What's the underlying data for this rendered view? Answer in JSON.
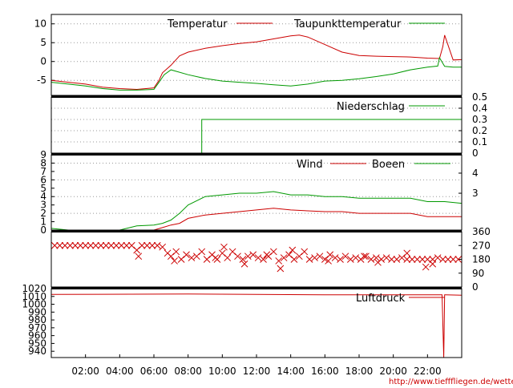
{
  "chart_data": [
    {
      "type": "line",
      "legend_position": "top-right",
      "grid": true,
      "yticks_left": [
        "10",
        "5",
        "0",
        "-5"
      ],
      "ylim": [
        -9,
        12.5
      ],
      "series": [
        {
          "name": "Temperatur",
          "color": "#cc0000",
          "x": [
            0,
            1,
            2,
            3,
            4,
            5,
            6,
            6.3,
            6.5,
            7,
            7.5,
            8,
            9,
            10,
            11,
            12,
            13,
            14,
            14.5,
            15,
            16,
            17,
            18,
            19,
            20,
            21,
            22,
            22.7,
            22.9,
            23,
            23.5,
            24
          ],
          "y": [
            -5,
            -5.5,
            -6,
            -6.8,
            -7.2,
            -7.4,
            -7,
            -5,
            -3,
            -1,
            1.5,
            2.5,
            3.5,
            4.2,
            4.8,
            5.2,
            6,
            6.8,
            7,
            6.5,
            4.5,
            2.5,
            1.6,
            1.4,
            1.3,
            1.2,
            0.9,
            0.8,
            4,
            7,
            0.4,
            0.5
          ]
        },
        {
          "name": "Taupunkttemperatur",
          "color": "#009900",
          "x": [
            0,
            1,
            2,
            3,
            4,
            5,
            6,
            6.3,
            6.6,
            7,
            8,
            9,
            10,
            11,
            12,
            13,
            14,
            15,
            16,
            17,
            18,
            19,
            20,
            21,
            22,
            22.6,
            22.7,
            23,
            23.5,
            24
          ],
          "y": [
            -5.5,
            -6,
            -6.5,
            -7.2,
            -7.6,
            -7.6,
            -7.4,
            -5.5,
            -3.5,
            -2.2,
            -3.5,
            -4.5,
            -5.2,
            -5.5,
            -5.8,
            -6.2,
            -6.5,
            -6,
            -5.2,
            -5,
            -4.6,
            -4,
            -3.3,
            -2.2,
            -1.5,
            -1.2,
            1,
            -1.3,
            -1.5,
            -1.5
          ]
        }
      ]
    },
    {
      "type": "line",
      "legend_position": "top-right",
      "grid": true,
      "yticks_right": [
        "0.5",
        "0.4",
        "0.3",
        "0.2",
        "0.1",
        "0"
      ],
      "ylim": [
        0,
        0.5
      ],
      "series": [
        {
          "name": "Niederschlag",
          "color": "#009900",
          "x": [
            0,
            8.8,
            8.8,
            22.6,
            22.6,
            24
          ],
          "y": [
            0,
            0,
            0.3,
            0.3,
            0.3,
            0.3
          ]
        }
      ]
    },
    {
      "type": "line",
      "legend_position": "top-right",
      "grid": true,
      "yticks_left": [
        "9",
        "8",
        "7",
        "6",
        "5",
        "4",
        "3",
        "2",
        "1",
        "0"
      ],
      "yticks_right": [
        "4",
        "3"
      ],
      "ylim": [
        0,
        9
      ],
      "series": [
        {
          "name": "Wind",
          "color": "#cc0000",
          "x": [
            0,
            1,
            2,
            3,
            4,
            5,
            6,
            6.5,
            7,
            7.5,
            8,
            9,
            10,
            11,
            12,
            13,
            14,
            15,
            16,
            17,
            18,
            19,
            20,
            21,
            22,
            23,
            24
          ],
          "y": [
            0,
            0,
            0,
            0,
            0,
            0,
            0,
            0.3,
            0.6,
            0.8,
            1.4,
            1.8,
            2,
            2.2,
            2.4,
            2.6,
            2.4,
            2.3,
            2.2,
            2.2,
            2,
            2,
            2,
            2,
            1.6,
            1.6,
            1.6
          ]
        },
        {
          "name": "Boeen",
          "color": "#009900",
          "x": [
            0,
            1,
            2,
            3,
            4,
            5,
            6,
            6.5,
            7,
            7.5,
            8,
            9,
            10,
            11,
            12,
            13,
            14,
            15,
            16,
            17,
            18,
            19,
            20,
            21,
            22,
            23,
            24
          ],
          "y": [
            0.2,
            0,
            0,
            0,
            0,
            0.5,
            0.6,
            0.8,
            1.2,
            2,
            3,
            4,
            4.2,
            4.4,
            4.4,
            4.6,
            4.2,
            4.2,
            4,
            4,
            3.8,
            3.8,
            3.8,
            3.8,
            3.4,
            3.4,
            3.2
          ]
        }
      ]
    },
    {
      "type": "scatter",
      "grid": false,
      "yticks_right": [
        "360",
        "270",
        "180",
        "90",
        "0"
      ],
      "ylim": [
        0,
        360
      ],
      "series": [
        {
          "color": "#cc0000",
          "x": [
            0.2,
            0.5,
            0.8,
            1.1,
            1.4,
            1.7,
            2,
            2.3,
            2.6,
            2.9,
            3.2,
            3.5,
            3.8,
            4.1,
            4.4,
            4.7,
            5,
            5.3,
            5.6,
            5.9,
            6.2,
            6.5,
            6.8,
            7,
            7.3,
            7.6,
            7.9,
            8.2,
            8.5,
            8.8,
            9.1,
            9.4,
            9.7,
            10,
            10.3,
            10.6,
            10.9,
            11.2,
            11.5,
            11.8,
            12.1,
            12.4,
            12.7,
            13,
            13.3,
            13.6,
            13.9,
            14.2,
            14.5,
            14.8,
            15.1,
            15.4,
            15.7,
            16,
            16.3,
            16.6,
            16.9,
            17.2,
            17.5,
            17.8,
            18.1,
            18.4,
            18.7,
            19,
            19.3,
            19.6,
            19.9,
            20.2,
            20.5,
            20.8,
            21.1,
            21.4,
            21.7,
            22,
            22.3,
            22.6,
            22.9,
            23.2,
            23.5,
            23.8
          ],
          "y": [
            270,
            270,
            270,
            270,
            270,
            270,
            270,
            270,
            270,
            270,
            270,
            270,
            270,
            270,
            270,
            270,
            240,
            270,
            270,
            270,
            270,
            260,
            220,
            200,
            230,
            180,
            210,
            190,
            200,
            230,
            180,
            210,
            180,
            220,
            190,
            230,
            200,
            180,
            200,
            210,
            190,
            180,
            200,
            230,
            170,
            190,
            210,
            180,
            200,
            230,
            180,
            190,
            200,
            180,
            210,
            190,
            180,
            200,
            180,
            190,
            180,
            200,
            180,
            190,
            180,
            190,
            180,
            180,
            190,
            180,
            180,
            180,
            180,
            180,
            180,
            190,
            180,
            180,
            180,
            180
          ]
        },
        {
          "color": "#cc0000",
          "x": [
            5.1,
            7.2,
            9.6,
            10.1,
            11.3,
            12.6,
            13.4,
            14.1,
            16.2,
            18.3,
            19.1,
            20.8,
            21.9,
            22.3
          ],
          "y": [
            200,
            170,
            190,
            260,
            150,
            210,
            120,
            240,
            170,
            200,
            160,
            220,
            130,
            150
          ]
        }
      ]
    },
    {
      "type": "line",
      "legend_position": "top-right",
      "grid": false,
      "yticks_left": [
        "1020",
        "1010",
        "1000",
        "990",
        "980",
        "970",
        "960",
        "950",
        "940"
      ],
      "ylim": [
        932,
        1020
      ],
      "series": [
        {
          "name": "Luftdruck",
          "color": "#cc0000",
          "x": [
            0,
            8,
            12,
            16,
            20,
            22.6,
            22.75,
            22.85,
            22.95,
            23,
            23.05,
            24
          ],
          "y": [
            1012.5,
            1013,
            1012.5,
            1012,
            1012,
            1012,
            1012,
            1012,
            932,
            1012,
            1012,
            1011.5
          ]
        }
      ]
    }
  ],
  "xaxis": {
    "ticks": [
      "02:00",
      "04:00",
      "06:00",
      "08:00",
      "10:00",
      "12:00",
      "14:00",
      "16:00",
      "18:00",
      "20:00",
      "22:00"
    ],
    "xlim": [
      0,
      24
    ]
  },
  "footer": {
    "url": "http://www.tiefffliegen.de/wetter/"
  },
  "colors": {
    "red": "#cc0000",
    "green": "#009900"
  }
}
